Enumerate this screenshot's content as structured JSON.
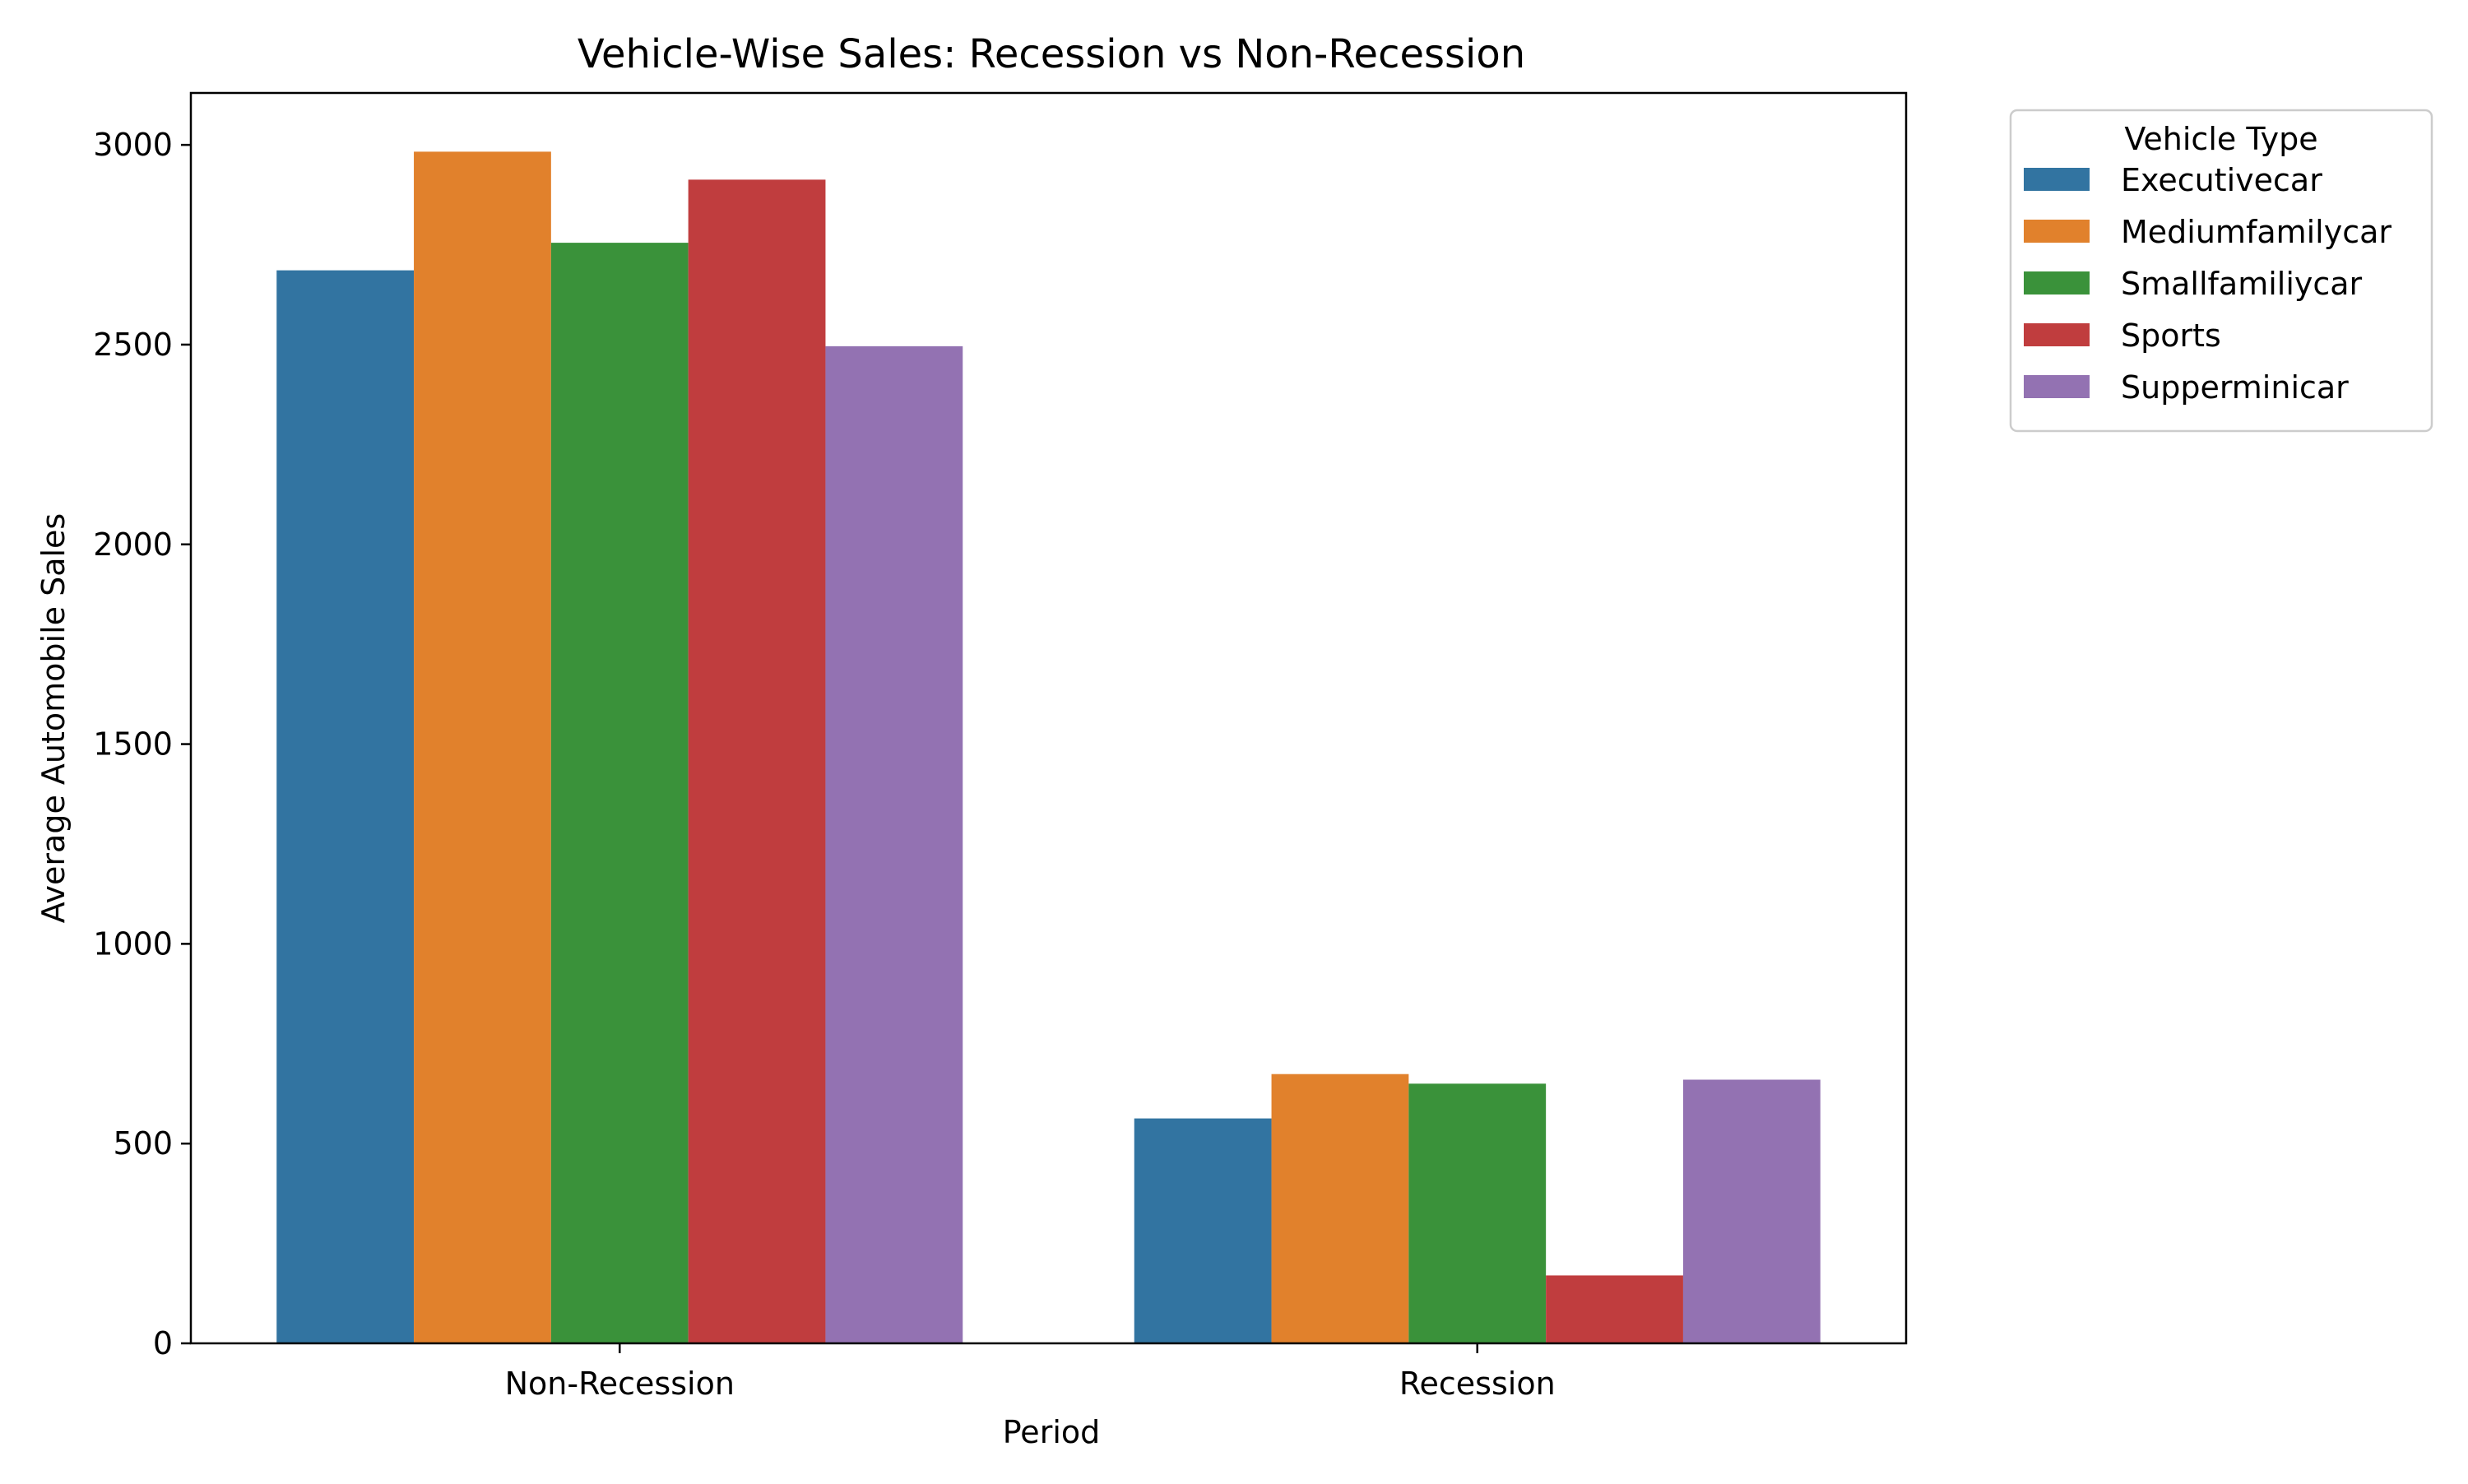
{
  "chart_data": {
    "type": "bar",
    "title": "Vehicle-Wise Sales: Recession vs Non-Recession",
    "xlabel": "Period",
    "ylabel": "Average Automobile Sales",
    "categories": [
      "Non-Recession",
      "Recession"
    ],
    "ylim": [
      0,
      3130
    ],
    "yticks": [
      0,
      500,
      1000,
      1500,
      2000,
      2500,
      3000
    ],
    "grid": false,
    "legend": {
      "title": "Vehicle Type",
      "placement": "outside-top-right"
    },
    "series": [
      {
        "name": "Executivecar",
        "color": "#3274a1",
        "values": [
          2686,
          563
        ]
      },
      {
        "name": "Mediumfamilycar",
        "color": "#e1812c",
        "values": [
          2983,
          674
        ]
      },
      {
        "name": "Smallfamiliycar",
        "color": "#3a923a",
        "values": [
          2755,
          650
        ]
      },
      {
        "name": "Sports",
        "color": "#c03d3e",
        "values": [
          2913,
          170
        ]
      },
      {
        "name": "Supperminicar",
        "color": "#9372b2",
        "values": [
          2496,
          660
        ]
      }
    ]
  }
}
